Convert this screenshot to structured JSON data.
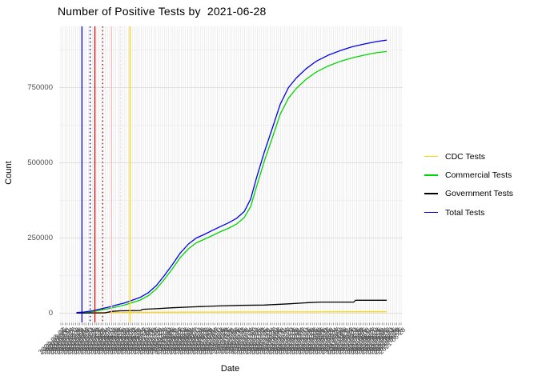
{
  "window": {
    "background": "#FFFFFF"
  },
  "chart_data": {
    "type": "line",
    "title": "Number of Positive Tests by  2021-06-28",
    "xlabel": "Date",
    "ylabel": "Count",
    "y_ticks": [
      0,
      250000,
      500000,
      750000
    ],
    "y_tick_labels": [
      "0",
      "250000",
      "500000",
      "750000"
    ],
    "ylim": [
      -30000,
      950000
    ],
    "grid": {
      "major": "#DEDEDE",
      "minor": "#EFEFEF",
      "vertical_date_lines": "#E4E4E4",
      "on": true
    },
    "tick_label_color": "#4D4D4D",
    "x_axis": {
      "type": "categorical-dates",
      "start_date": "2020-03-02",
      "end_date": "2021-06-28",
      "step_days": 3,
      "n_ticks": 162,
      "labels_rotated_deg": 45,
      "labels_overlap_illegible": true
    },
    "legend": {
      "position": "right",
      "entries": [
        {
          "label": "CDC Tests",
          "color": "#FFD700"
        },
        {
          "label": "Commercial Tests",
          "color": "#00D500"
        },
        {
          "label": "Government Tests",
          "color": "#000000"
        },
        {
          "label": "Total Tests",
          "color": "#0000EE"
        }
      ]
    },
    "series": [
      {
        "name": "CDC Tests",
        "color": "#FFD700",
        "points_x_frac_count": [
          [
            0.093,
            2000
          ],
          [
            0.198,
            3000
          ],
          [
            0.41,
            3800
          ],
          [
            0.645,
            4300
          ],
          [
            0.958,
            4800
          ]
        ]
      },
      {
        "name": "Commercial Tests",
        "color": "#00D500",
        "points_x_frac_count": [
          [
            0.076,
            2000
          ],
          [
            0.093,
            5000
          ],
          [
            0.116,
            10000
          ],
          [
            0.14,
            15000
          ],
          [
            0.163,
            21000
          ],
          [
            0.187,
            27000
          ],
          [
            0.21,
            35000
          ],
          [
            0.234,
            44000
          ],
          [
            0.257,
            58000
          ],
          [
            0.281,
            81000
          ],
          [
            0.304,
            112000
          ],
          [
            0.328,
            148000
          ],
          [
            0.351,
            185000
          ],
          [
            0.375,
            214000
          ],
          [
            0.398,
            234000
          ],
          [
            0.422,
            246000
          ],
          [
            0.445,
            258000
          ],
          [
            0.469,
            271000
          ],
          [
            0.492,
            282000
          ],
          [
            0.516,
            296000
          ],
          [
            0.539,
            318000
          ],
          [
            0.558,
            355000
          ],
          [
            0.575,
            420000
          ],
          [
            0.598,
            505000
          ],
          [
            0.622,
            585000
          ],
          [
            0.645,
            662000
          ],
          [
            0.669,
            715000
          ],
          [
            0.692,
            747000
          ],
          [
            0.72,
            777000
          ],
          [
            0.751,
            802000
          ],
          [
            0.786,
            822000
          ],
          [
            0.821,
            837000
          ],
          [
            0.857,
            849000
          ],
          [
            0.892,
            858000
          ],
          [
            0.927,
            866000
          ],
          [
            0.958,
            870000
          ]
        ]
      },
      {
        "name": "Government Tests",
        "color": "#000000",
        "points_x_frac_count": [
          [
            0.046,
            500
          ],
          [
            0.128,
            1000
          ],
          [
            0.151,
            6000
          ],
          [
            0.175,
            8000
          ],
          [
            0.234,
            9000
          ],
          [
            0.241,
            13000
          ],
          [
            0.281,
            15000
          ],
          [
            0.328,
            18000
          ],
          [
            0.387,
            21000
          ],
          [
            0.457,
            24000
          ],
          [
            0.528,
            26000
          ],
          [
            0.598,
            27000
          ],
          [
            0.669,
            31000
          ],
          [
            0.727,
            35000
          ],
          [
            0.763,
            37000
          ],
          [
            0.861,
            37000
          ],
          [
            0.866,
            43000
          ],
          [
            0.958,
            43000
          ]
        ]
      },
      {
        "name": "Total Tests",
        "color": "#0000EE",
        "points_x_frac_count": [
          [
            0.046,
            2000
          ],
          [
            0.069,
            4000
          ],
          [
            0.093,
            8000
          ],
          [
            0.116,
            14000
          ],
          [
            0.14,
            20000
          ],
          [
            0.163,
            27000
          ],
          [
            0.187,
            34000
          ],
          [
            0.21,
            43000
          ],
          [
            0.234,
            53000
          ],
          [
            0.257,
            68000
          ],
          [
            0.281,
            92000
          ],
          [
            0.304,
            125000
          ],
          [
            0.328,
            162000
          ],
          [
            0.351,
            200000
          ],
          [
            0.375,
            230000
          ],
          [
            0.398,
            250000
          ],
          [
            0.422,
            262000
          ],
          [
            0.445,
            275000
          ],
          [
            0.469,
            288000
          ],
          [
            0.492,
            300000
          ],
          [
            0.516,
            315000
          ],
          [
            0.539,
            338000
          ],
          [
            0.558,
            380000
          ],
          [
            0.575,
            450000
          ],
          [
            0.598,
            535000
          ],
          [
            0.622,
            617000
          ],
          [
            0.645,
            695000
          ],
          [
            0.669,
            750000
          ],
          [
            0.692,
            782000
          ],
          [
            0.72,
            812000
          ],
          [
            0.751,
            838000
          ],
          [
            0.786,
            858000
          ],
          [
            0.821,
            873000
          ],
          [
            0.857,
            886000
          ],
          [
            0.892,
            895000
          ],
          [
            0.927,
            903000
          ],
          [
            0.958,
            908000
          ]
        ]
      }
    ],
    "event_vlines": [
      {
        "x_frac": 0.062,
        "color": "#0000EE",
        "style": "solid"
      },
      {
        "x_frac": 0.086,
        "color": "#00008B",
        "style": "dotted"
      },
      {
        "x_frac": 0.1,
        "color": "#E50000",
        "style": "solid"
      },
      {
        "x_frac": 0.123,
        "color": "#990000",
        "style": "dotted"
      },
      {
        "x_frac": 0.149,
        "color": "#FFB6C1",
        "style": "solid"
      },
      {
        "x_frac": 0.175,
        "color": "#FFCCD5",
        "style": "dotted"
      },
      {
        "x_frac": 0.203,
        "color": "#FFD700",
        "style": "solid"
      }
    ]
  }
}
